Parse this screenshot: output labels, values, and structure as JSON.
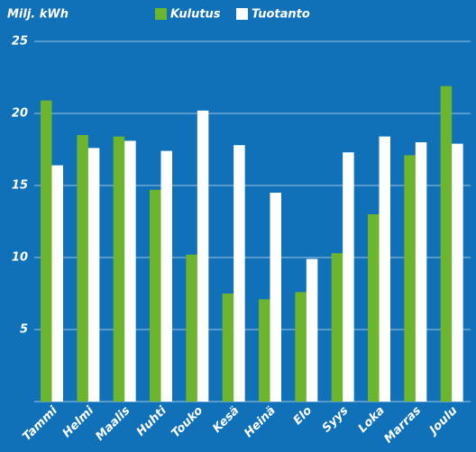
{
  "chart_data": {
    "type": "bar",
    "y_label": "Milj. kWh",
    "categories": [
      "Tammi",
      "Helmi",
      "Maalis",
      "Huhti",
      "Touko",
      "Kesä",
      "Heinä",
      "Elo",
      "Syys",
      "Loka",
      "Marras",
      "Joulu"
    ],
    "series": [
      {
        "name": "Kulutus",
        "color": "#6cb52d",
        "values": [
          20.9,
          18.5,
          18.4,
          14.7,
          10.2,
          7.5,
          7.1,
          7.6,
          10.3,
          13.0,
          17.1,
          21.9
        ]
      },
      {
        "name": "Tuotanto",
        "color": "#ffffff",
        "values": [
          16.4,
          17.6,
          18.1,
          17.4,
          20.2,
          17.8,
          14.5,
          9.9,
          17.3,
          18.4,
          18.0,
          17.9
        ]
      }
    ],
    "ylim": [
      0,
      25
    ],
    "yticks": [
      5,
      10,
      15,
      20,
      25
    ],
    "grid": true,
    "legend": "top"
  }
}
